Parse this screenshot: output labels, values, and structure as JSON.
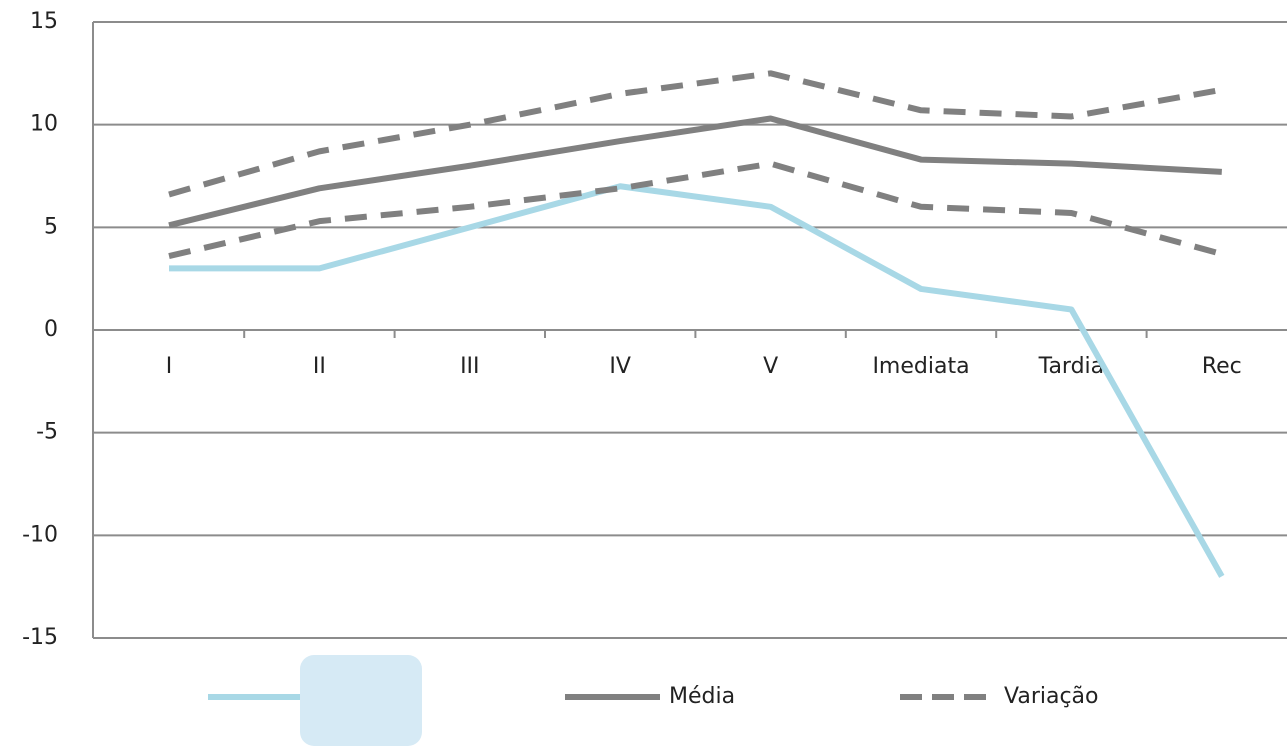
{
  "chart_data": {
    "type": "line",
    "categories": [
      "I",
      "II",
      "III",
      "IV",
      "V",
      "Imediata",
      "Tardia",
      "Rec"
    ],
    "series": [
      {
        "name": null,
        "color": "#a8d8e6",
        "dashed": false,
        "values": [
          3,
          3,
          5,
          7,
          6,
          2,
          1,
          -12
        ]
      },
      {
        "name": "Média",
        "color": "#808080",
        "dashed": false,
        "values": [
          5.1,
          6.9,
          8,
          9.2,
          10.3,
          8.3,
          8.1,
          7.7
        ]
      },
      {
        "name": "Variação",
        "color": "#808080",
        "dashed": true,
        "values": [
          6.6,
          8.7,
          10,
          11.5,
          12.5,
          10.7,
          10.4,
          11.7
        ]
      },
      {
        "color": "#808080",
        "dashed": true,
        "values": [
          3.6,
          5.3,
          6,
          6.9,
          8.1,
          6,
          5.7,
          3.7
        ]
      }
    ],
    "ylim": [
      -15,
      15
    ],
    "yticks": [
      -15,
      -10,
      -5,
      0,
      5,
      10,
      15
    ],
    "grid": true,
    "legend": "bottom"
  }
}
